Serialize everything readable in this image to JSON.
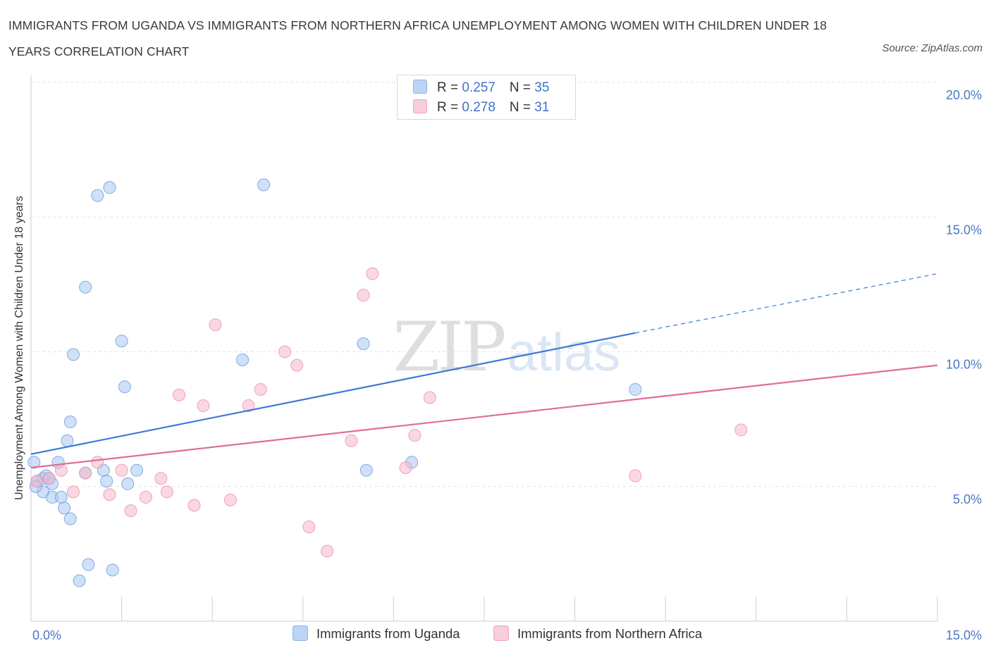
{
  "title": "IMMIGRANTS FROM UGANDA VS IMMIGRANTS FROM NORTHERN AFRICA UNEMPLOYMENT AMONG WOMEN WITH CHILDREN UNDER 18 YEARS CORRELATION CHART",
  "source": "Source: ZipAtlas.com",
  "watermark": {
    "zip": "ZIP",
    "atlas": "atlas"
  },
  "legend_top": [
    {
      "r_label": "R = ",
      "r_value": "0.257",
      "n_label": "N = ",
      "n_value": "35",
      "color": "#a9c8f0"
    },
    {
      "r_label": "R = ",
      "r_value": "0.278",
      "n_label": "N = ",
      "n_value": "31",
      "color": "#f5b8cb"
    }
  ],
  "chart_data": {
    "type": "scatter",
    "title": "IMMIGRANTS FROM UGANDA VS IMMIGRANTS FROM NORTHERN AFRICA UNEMPLOYMENT AMONG WOMEN WITH CHILDREN UNDER 18 YEARS CORRELATION CHART",
    "xlabel": "",
    "ylabel": "Unemployment Among Women with Children Under 18 years",
    "xlim": [
      0,
      15
    ],
    "ylim": [
      0,
      20
    ],
    "x_ticks": [
      {
        "value": 0,
        "label": "0.0%"
      },
      {
        "value": 15,
        "label": "15.0%"
      }
    ],
    "y_ticks": [
      {
        "value": 5,
        "label": "5.0%"
      },
      {
        "value": 10,
        "label": "10.0%"
      },
      {
        "value": 15,
        "label": "15.0%"
      },
      {
        "value": 20,
        "label": "20.0%"
      }
    ],
    "grid": true,
    "legend_position": "bottom",
    "series": [
      {
        "name": "Immigrants from Uganda",
        "color": "#6f9fe0",
        "fill": "#a9c8f0",
        "line_color": "#3a7bd5",
        "trend": {
          "x": [
            0,
            10.0
          ],
          "y": [
            6.2,
            10.7
          ],
          "dashed_x": [
            10.0,
            15.0
          ],
          "dashed_y": [
            10.7,
            12.9
          ]
        },
        "points": [
          [
            0.05,
            5.9
          ],
          [
            0.1,
            5.2
          ],
          [
            0.2,
            5.3
          ],
          [
            0.25,
            5.4
          ],
          [
            0.35,
            5.1
          ],
          [
            0.2,
            4.8
          ],
          [
            0.35,
            4.6
          ],
          [
            0.5,
            4.6
          ],
          [
            0.55,
            4.2
          ],
          [
            0.45,
            5.9
          ],
          [
            0.65,
            3.8
          ],
          [
            0.6,
            6.7
          ],
          [
            0.65,
            7.4
          ],
          [
            0.7,
            9.9
          ],
          [
            0.9,
            12.4
          ],
          [
            0.8,
            1.5
          ],
          [
            0.95,
            2.1
          ],
          [
            1.1,
            15.8
          ],
          [
            1.3,
            16.1
          ],
          [
            1.35,
            1.9
          ],
          [
            1.2,
            5.6
          ],
          [
            1.25,
            5.2
          ],
          [
            1.5,
            10.4
          ],
          [
            1.55,
            8.7
          ],
          [
            1.6,
            5.1
          ],
          [
            1.75,
            5.6
          ],
          [
            3.5,
            9.7
          ],
          [
            3.85,
            16.2
          ],
          [
            5.5,
            10.3
          ],
          [
            5.55,
            5.6
          ],
          [
            6.3,
            5.9
          ],
          [
            10.0,
            8.6
          ],
          [
            0.08,
            5.0
          ],
          [
            0.3,
            5.3
          ],
          [
            0.9,
            5.5
          ]
        ]
      },
      {
        "name": "Immigrants from Northern Africa",
        "color": "#ec93b0",
        "fill": "#f5b8cb",
        "line_color": "#e06e97",
        "trend": {
          "x": [
            0,
            15.0
          ],
          "y": [
            5.7,
            9.5
          ]
        },
        "points": [
          [
            0.1,
            5.2
          ],
          [
            0.3,
            5.3
          ],
          [
            0.5,
            5.6
          ],
          [
            0.7,
            4.8
          ],
          [
            0.9,
            5.5
          ],
          [
            1.1,
            5.9
          ],
          [
            1.3,
            4.7
          ],
          [
            1.5,
            5.6
          ],
          [
            1.65,
            4.1
          ],
          [
            1.9,
            4.6
          ],
          [
            2.15,
            5.3
          ],
          [
            2.25,
            4.8
          ],
          [
            2.45,
            8.4
          ],
          [
            2.7,
            4.3
          ],
          [
            2.85,
            8.0
          ],
          [
            3.05,
            11.0
          ],
          [
            3.3,
            4.5
          ],
          [
            3.6,
            8.0
          ],
          [
            3.8,
            8.6
          ],
          [
            4.2,
            10.0
          ],
          [
            4.4,
            9.5
          ],
          [
            4.6,
            3.5
          ],
          [
            4.9,
            2.6
          ],
          [
            5.3,
            6.7
          ],
          [
            5.5,
            12.1
          ],
          [
            5.65,
            12.9
          ],
          [
            6.2,
            5.7
          ],
          [
            6.35,
            6.9
          ],
          [
            6.6,
            8.3
          ],
          [
            10.0,
            5.4
          ],
          [
            11.75,
            7.1
          ]
        ]
      }
    ]
  }
}
